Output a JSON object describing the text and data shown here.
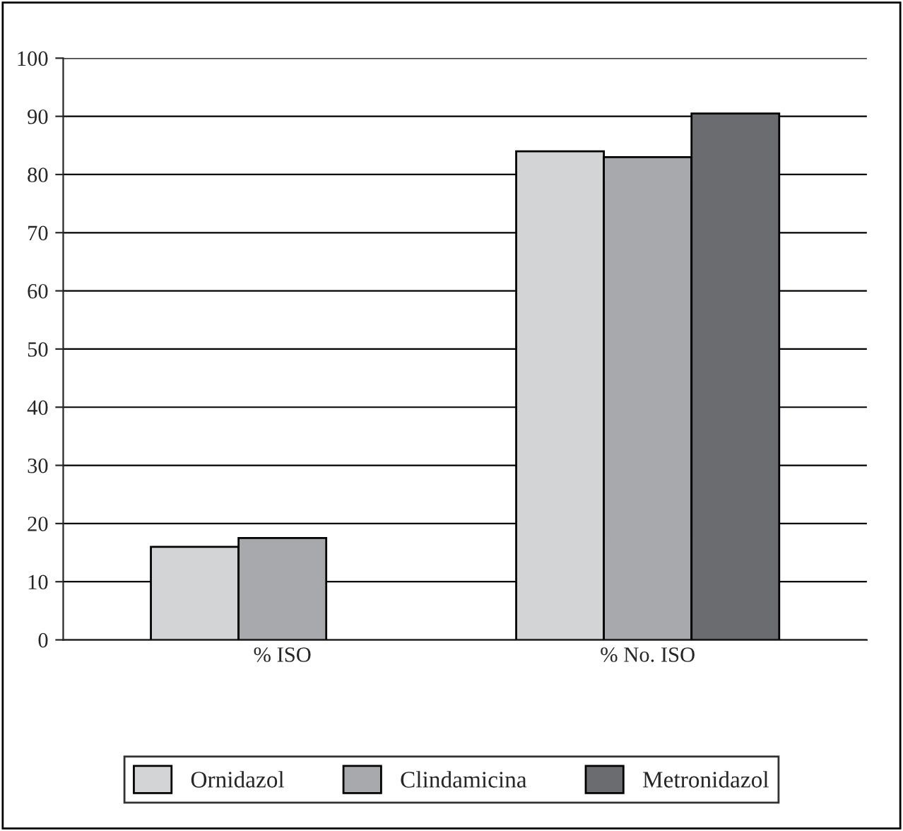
{
  "chart_data": {
    "type": "bar",
    "categories": [
      "% ISO",
      "% No. ISO"
    ],
    "series": [
      {
        "name": "Ornidazol",
        "color": "#d3d4d6",
        "values": [
          16,
          84
        ]
      },
      {
        "name": "Clindamicina",
        "color": "#a8a9ac",
        "values": [
          17.5,
          83
        ]
      },
      {
        "name": "Metronidazol",
        "color": "#6b6c70",
        "values": [
          null,
          90.5
        ]
      }
    ],
    "ylim": [
      0,
      100
    ],
    "yticks": [
      0,
      10,
      20,
      30,
      40,
      50,
      60,
      70,
      80,
      90,
      100
    ],
    "grid": "y",
    "legend": "bottom"
  }
}
